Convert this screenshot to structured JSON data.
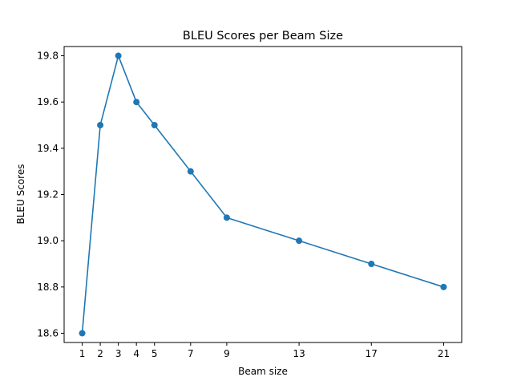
{
  "chart_data": {
    "type": "line",
    "title": "BLEU Scores per Beam Size",
    "xlabel": "Beam size",
    "ylabel": "BLEU Scores",
    "x": [
      1,
      2,
      3,
      4,
      5,
      7,
      9,
      13,
      17,
      21
    ],
    "series": [
      {
        "values": [
          18.6,
          19.5,
          19.8,
          19.6,
          19.5,
          19.3,
          19.1,
          19.0,
          18.9,
          18.8
        ],
        "color": "#1f77b4",
        "marker": "circle"
      }
    ],
    "xticks": [
      1,
      2,
      3,
      4,
      5,
      7,
      9,
      13,
      17,
      21
    ],
    "yticks": [
      18.6,
      18.8,
      19.0,
      19.2,
      19.4,
      19.6,
      19.8
    ],
    "ytick_labels": [
      "18.6",
      "18.8",
      "19.0",
      "19.2",
      "19.4",
      "19.6",
      "19.8"
    ],
    "xlim": [
      0,
      22
    ],
    "ylim": [
      18.56,
      19.84
    ],
    "grid": false,
    "legend": "none"
  }
}
